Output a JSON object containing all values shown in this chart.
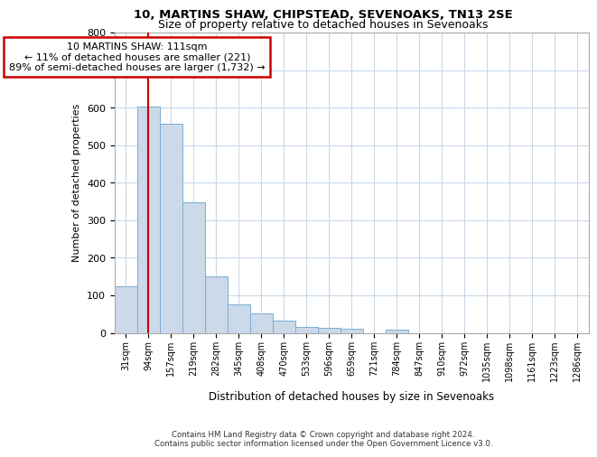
{
  "title_line1": "10, MARTINS SHAW, CHIPSTEAD, SEVENOAKS, TN13 2SE",
  "title_line2": "Size of property relative to detached houses in Sevenoaks",
  "xlabel": "Distribution of detached houses by size in Sevenoaks",
  "ylabel": "Number of detached properties",
  "categories": [
    "31sqm",
    "94sqm",
    "157sqm",
    "219sqm",
    "282sqm",
    "345sqm",
    "408sqm",
    "470sqm",
    "533sqm",
    "596sqm",
    "659sqm",
    "721sqm",
    "784sqm",
    "847sqm",
    "910sqm",
    "972sqm",
    "1035sqm",
    "1098sqm",
    "1161sqm",
    "1223sqm",
    "1286sqm"
  ],
  "values": [
    125,
    602,
    557,
    348,
    150,
    75,
    52,
    33,
    15,
    13,
    12,
    0,
    8,
    0,
    0,
    0,
    0,
    0,
    0,
    0,
    0
  ],
  "bar_color": "#ccd9e8",
  "bar_edge_color": "#7aadd4",
  "grid_color": "#c8d8e8",
  "background_color": "#ffffff",
  "vline_x_index": 1.0,
  "vline_color": "#cc0000",
  "annotation_text": "10 MARTINS SHAW: 111sqm\n← 11% of detached houses are smaller (221)\n89% of semi-detached houses are larger (1,732) →",
  "annotation_box_color": "#ffffff",
  "annotation_box_edge_color": "#cc0000",
  "footer_text": "Contains HM Land Registry data © Crown copyright and database right 2024.\nContains public sector information licensed under the Open Government Licence v3.0.",
  "ylim": [
    0,
    800
  ],
  "yticks": [
    0,
    100,
    200,
    300,
    400,
    500,
    600,
    700,
    800
  ]
}
